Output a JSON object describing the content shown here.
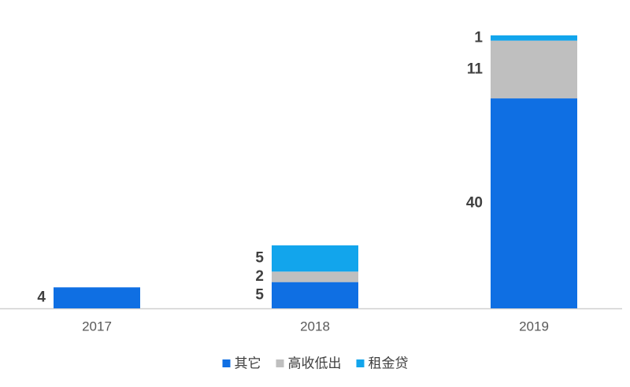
{
  "chart_data": {
    "type": "stacked_bar",
    "categories": [
      "2017",
      "2018",
      "2019"
    ],
    "series": [
      {
        "name": "其它",
        "color": "#0f6fe3",
        "values": [
          4,
          5,
          40
        ]
      },
      {
        "name": "高收低出",
        "color": "#bfbfbf",
        "values": [
          null,
          2,
          11
        ]
      },
      {
        "name": "租金贷",
        "color": "#12a5ec",
        "values": [
          null,
          5,
          1
        ]
      }
    ],
    "legend": "bottom"
  }
}
